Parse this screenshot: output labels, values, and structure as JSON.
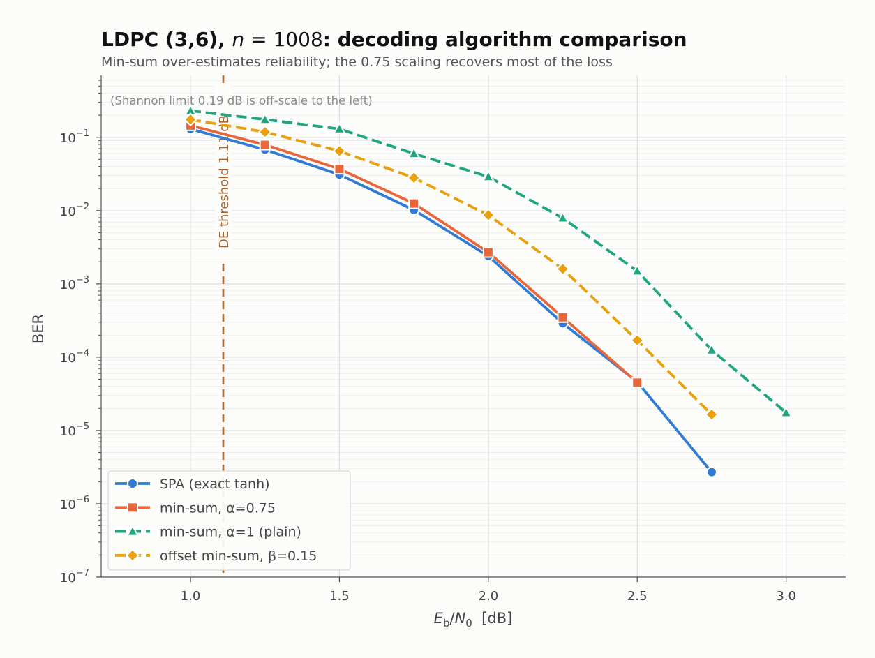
{
  "chart_data": {
    "type": "line",
    "title": "LDPC (3,6), n = 1008: decoding algorithm comparison",
    "title_parts": {
      "pre": "LDPC (3,6), ",
      "var": "n",
      "eq": " = 1008",
      "post": ": decoding algorithm comparison"
    },
    "subtitle": "Min-sum over-estimates reliability; the 0.75 scaling recovers most of the loss",
    "xlabel_parts": {
      "var1": "E",
      "sub1": "b",
      "slash": "/",
      "var2": "N",
      "sub2": "0",
      "unit": "  [dB]"
    },
    "xlabel": "Eb/N0  [dB]",
    "ylabel": "BER",
    "xlim": [
      0.7,
      3.2
    ],
    "ylim": [
      1e-07,
      0.7
    ],
    "yscale": "log",
    "xticks": [
      "1.0",
      "1.5",
      "2.0",
      "2.5",
      "3.0"
    ],
    "xtick_values": [
      1.0,
      1.5,
      2.0,
      2.5,
      3.0
    ],
    "yticks": [
      {
        "value": 0.1,
        "mant": "10",
        "exp": "−1"
      },
      {
        "value": 0.01,
        "mant": "10",
        "exp": "−2"
      },
      {
        "value": 0.001,
        "mant": "10",
        "exp": "−3"
      },
      {
        "value": 0.0001,
        "mant": "10",
        "exp": "−4"
      },
      {
        "value": 1e-05,
        "mant": "10",
        "exp": "−5"
      },
      {
        "value": 1e-06,
        "mant": "10",
        "exp": "−6"
      },
      {
        "value": 1e-07,
        "mant": "10",
        "exp": "−7"
      }
    ],
    "grid": true,
    "legend_position": "lower-left",
    "threshold": {
      "x": 1.11,
      "label": "DE threshold 1.11 dB",
      "color": "#b5652b"
    },
    "annotation": "(Shannon limit 0.19 dB is off-scale to the left)",
    "series": [
      {
        "name": "SPA (exact tanh)",
        "color": "#2f7bd6",
        "marker": "circle",
        "dash": "solid",
        "x": [
          1.0,
          1.25,
          1.5,
          1.75,
          2.0,
          2.25,
          2.5,
          2.75
        ],
        "y": [
          0.13,
          0.068,
          0.031,
          0.0102,
          0.0024,
          0.00029,
          4.6e-05,
          2.7e-06
        ]
      },
      {
        "name": "min-sum, α=0.75",
        "color": "#e8663a",
        "marker": "square",
        "dash": "solid",
        "x": [
          1.0,
          1.25,
          1.5,
          1.75,
          2.0,
          2.25,
          2.5
        ],
        "y": [
          0.145,
          0.079,
          0.037,
          0.0125,
          0.0027,
          0.00035,
          4.5e-05
        ]
      },
      {
        "name": "min-sum, α=1 (plain)",
        "color": "#1fa67f",
        "marker": "triangle",
        "dash": "dash",
        "x": [
          1.0,
          1.25,
          1.5,
          1.75,
          2.0,
          2.25,
          2.5,
          2.75,
          3.0
        ],
        "y": [
          0.23,
          0.175,
          0.13,
          0.06,
          0.029,
          0.0079,
          0.0015,
          0.000125,
          1.75e-05
        ]
      },
      {
        "name": "offset min-sum, β=0.15",
        "color": "#eaa00c",
        "marker": "diamond",
        "dash": "dash",
        "x": [
          1.0,
          1.25,
          1.5,
          1.75,
          2.0,
          2.25,
          2.5,
          2.75
        ],
        "y": [
          0.175,
          0.118,
          0.065,
          0.028,
          0.0087,
          0.0016,
          0.00017,
          1.65e-05
        ]
      }
    ]
  }
}
